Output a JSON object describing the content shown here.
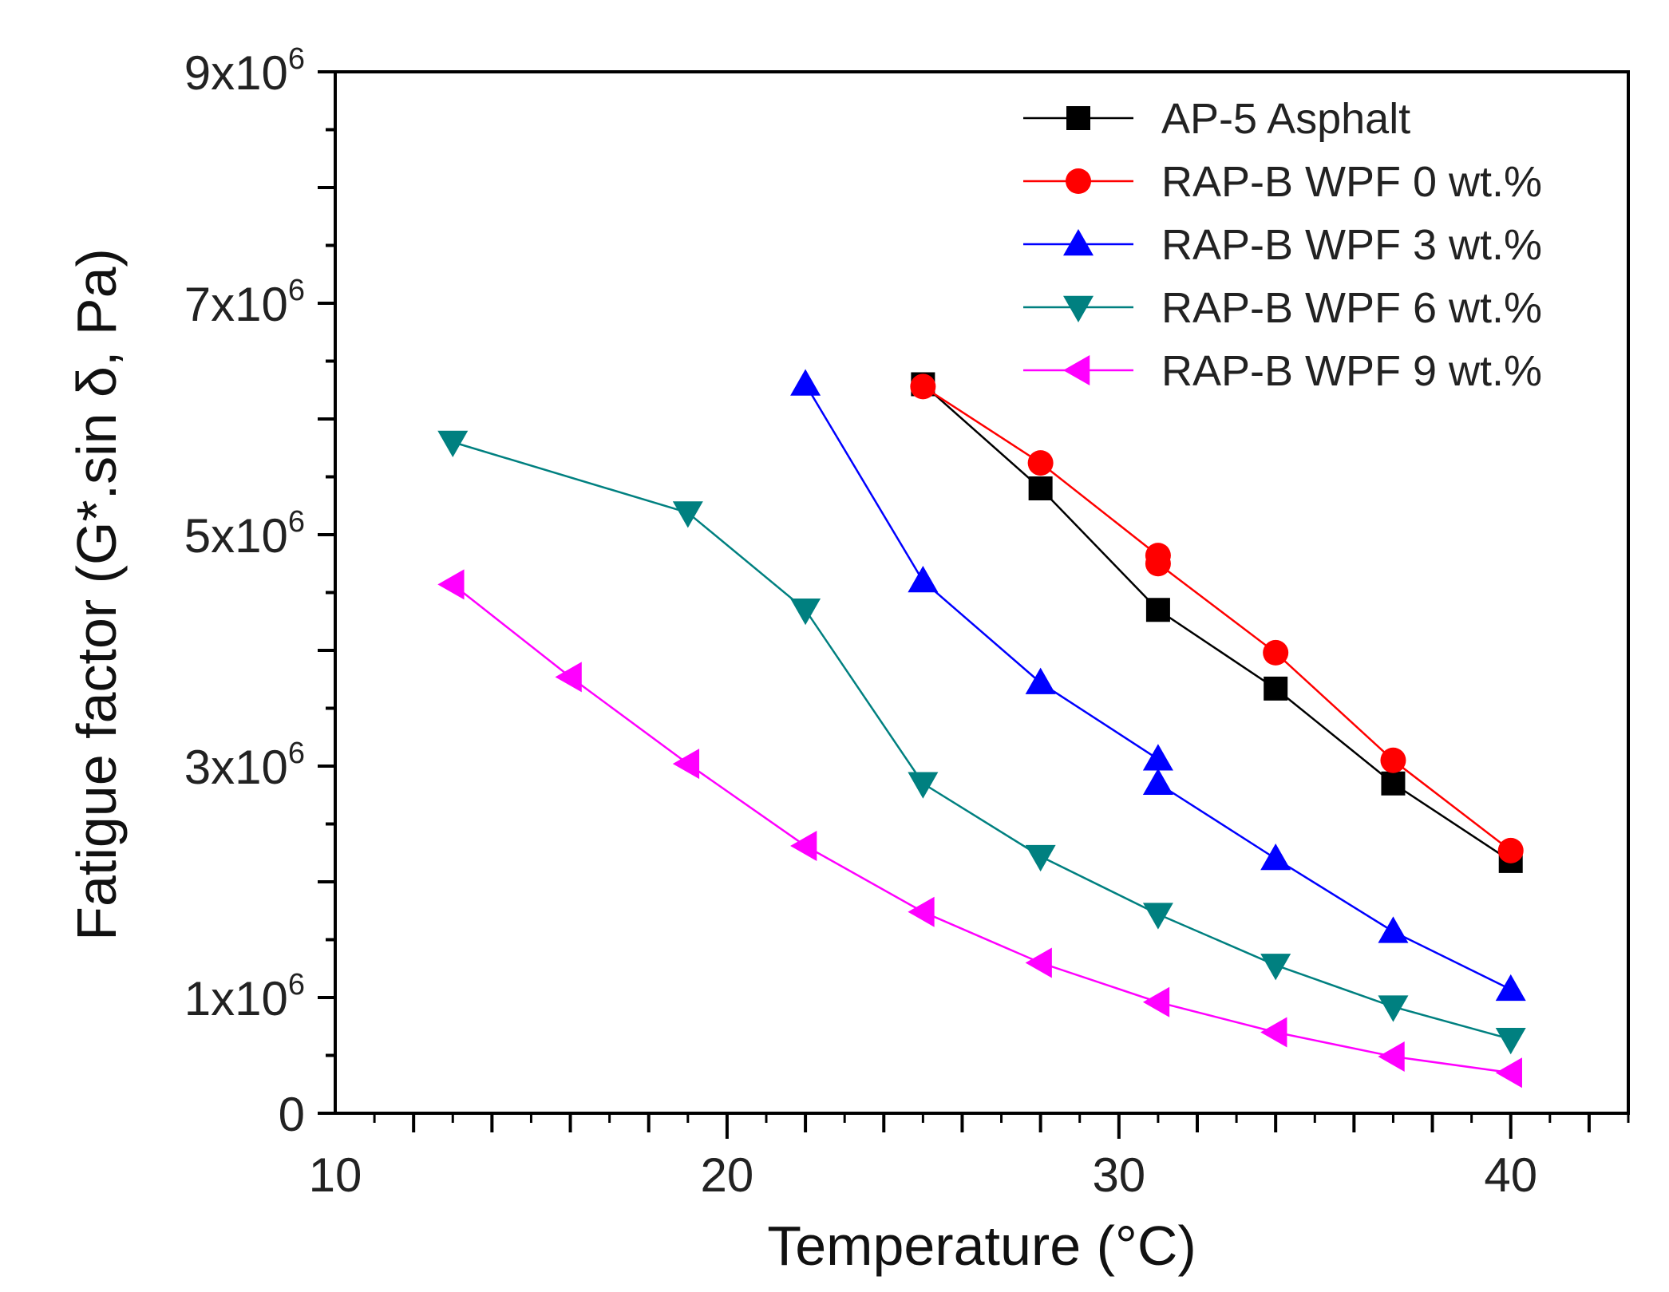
{
  "chart_data": {
    "type": "line",
    "title": "",
    "xlabel": "Temperature (°C)",
    "ylabel": "Fatigue factor (G*.sin δ, Pa)",
    "xlim": [
      10,
      43
    ],
    "ylim": [
      0,
      9000000
    ],
    "x_ticks": [
      10,
      20,
      30,
      40
    ],
    "x_tick_labels": [
      "10",
      "20",
      "30",
      "40"
    ],
    "y_ticks": [
      0,
      1000000,
      3000000,
      5000000,
      7000000,
      9000000
    ],
    "y_tick_labels": [
      {
        "base": "0",
        "exp": ""
      },
      {
        "base": "1x10",
        "exp": "6"
      },
      {
        "base": "3x10",
        "exp": "6"
      },
      {
        "base": "5x10",
        "exp": "6"
      },
      {
        "base": "7x10",
        "exp": "6"
      },
      {
        "base": "9x10",
        "exp": "6"
      }
    ],
    "legend_position": "top-right",
    "series": [
      {
        "name": "AP-5 Asphalt",
        "color": "#000000",
        "marker": "square",
        "x": [
          25,
          28,
          31,
          34,
          37,
          40
        ],
        "values": [
          6300000,
          5400000,
          4350000,
          3670000,
          2850000,
          2180000
        ]
      },
      {
        "name": "RAP-B WPF 0 wt.%",
        "color": "#ff0000",
        "marker": "circle",
        "x": [
          25,
          28,
          31,
          31,
          34,
          37,
          40
        ],
        "values": [
          6280000,
          5620000,
          4820000,
          4750000,
          3980000,
          3050000,
          2270000
        ]
      },
      {
        "name": "RAP-B WPF 3 wt.%",
        "color": "#0000ff",
        "marker": "triangle-up",
        "x": [
          22,
          25,
          28,
          31,
          31,
          34,
          37,
          40
        ],
        "values": [
          6300000,
          4600000,
          3720000,
          3060000,
          2850000,
          2200000,
          1570000,
          1070000
        ]
      },
      {
        "name": "RAP-B WPF 6 wt.%",
        "color": "#008080",
        "marker": "triangle-down",
        "x": [
          13,
          19,
          22,
          25,
          28,
          31,
          34,
          37,
          40
        ],
        "values": [
          5800000,
          5190000,
          4350000,
          2850000,
          2220000,
          1720000,
          1280000,
          920000,
          640000
        ]
      },
      {
        "name": "RAP-B WPF 9 wt.%",
        "color": "#ff00ff",
        "marker": "triangle-left",
        "x": [
          13,
          16,
          19,
          22,
          25,
          28,
          31,
          34,
          37,
          40
        ],
        "values": [
          4570000,
          3770000,
          3020000,
          2310000,
          1740000,
          1300000,
          960000,
          700000,
          490000,
          350000
        ]
      }
    ]
  }
}
